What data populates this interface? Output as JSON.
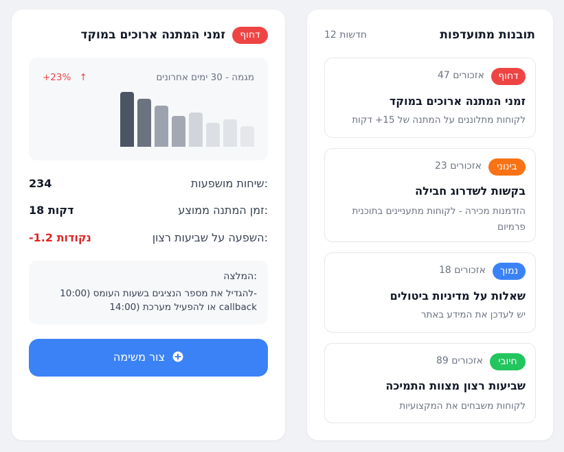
{
  "insights": {
    "title": "תובנות מתועדפות",
    "new_count": "12 חדשות",
    "items": [
      {
        "badge": "דחוף",
        "badge_color": "#ef4444",
        "mentions": "47 אזכורים",
        "title": "זמני המתנה ארוכים במוקד",
        "desc": "לקוחות מתלוננים על המתנה של 15+ דקות"
      },
      {
        "badge": "בינוני",
        "badge_color": "#f97316",
        "mentions": "23 אזכורים",
        "title": "בקשות לשדרוג חבילה",
        "desc": "הזדמנות מכירה - לקוחות מתעניינים בתוכנית פרמיום"
      },
      {
        "badge": "נמוך",
        "badge_color": "#3b82f6",
        "mentions": "18 אזכורים",
        "title": "שאלות על מדיניות ביטולים",
        "desc": "יש לעדכן את המידע באתר"
      },
      {
        "badge": "חיובי",
        "badge_color": "#22c55e",
        "mentions": "89 אזכורים",
        "title": "שביעות רצון מצוות התמיכה",
        "desc": "לקוחות משבחים את המקצועיות"
      }
    ]
  },
  "detail": {
    "title": "זמני המתנה ארוכים במוקד",
    "badge": "דחוף",
    "badge_color": "#ef4444",
    "chart": {
      "label": "מגמה - 30 ימים אחרונים",
      "change": "+23%",
      "change_arrow": "↑",
      "change_color": "#ef4444"
    },
    "stats": [
      {
        "label": "שיחות מושפעות:",
        "value": "234",
        "color": "#111827"
      },
      {
        "label": "זמן המתנה ממוצע:",
        "value": "18 דקות",
        "color": "#111827"
      },
      {
        "label": "השפעה על שביעות רצון:",
        "value": "-1.2 נקודות",
        "color": "#dc2626"
      }
    ],
    "recommendation": {
      "heading": "המלצה:",
      "line1": "להגדיל את מספר הנציגים בשעות העומס (10:00-",
      "line2": "14:00) או להפעיל מערכת callback"
    },
    "button_label": "צור משימה"
  },
  "chart_data": {
    "type": "bar",
    "title": "מגמה - 30 ימים אחרונים",
    "categories": [
      "1",
      "2",
      "3",
      "4",
      "5",
      "6",
      "7",
      "8"
    ],
    "values": [
      80,
      70,
      60,
      45,
      50,
      35,
      40,
      30
    ],
    "ylim": [
      0,
      80
    ],
    "colors": [
      "#4b5563",
      "#6b7280",
      "#9ca3af",
      "#a3a8b3",
      "#d1d5db",
      "#dcdfe4",
      "#e0e3e8",
      "#e5e7eb"
    ]
  }
}
